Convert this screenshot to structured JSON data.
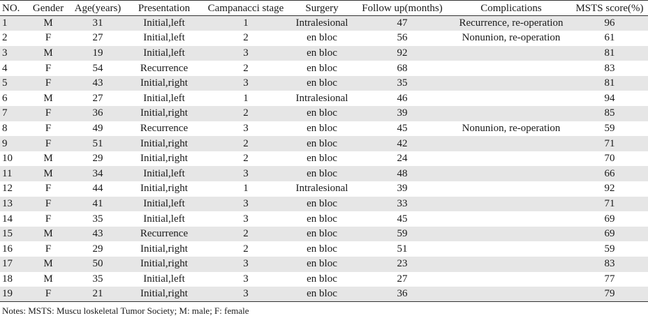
{
  "table": {
    "headers": [
      "NO.",
      "Gender",
      "Age(years)",
      "Presentation",
      "Campanacci stage",
      "Surgery",
      "Follow up(months)",
      "Complications",
      "MSTS score(%)"
    ],
    "rows": [
      [
        "1",
        "M",
        "31",
        "Initial,left",
        "1",
        "Intralesional",
        "47",
        "Recurrence, re-operation",
        "96"
      ],
      [
        "2",
        "F",
        "27",
        "Initial,left",
        "2",
        "en bloc",
        "56",
        "Nonunion, re-operation",
        "61"
      ],
      [
        "3",
        "M",
        "19",
        "Initial,left",
        "3",
        "en bloc",
        "92",
        "",
        "81"
      ],
      [
        "4",
        "F",
        "54",
        "Recurrence",
        "2",
        "en bloc",
        "68",
        "",
        "83"
      ],
      [
        "5",
        "F",
        "43",
        "Initial,right",
        "3",
        "en bloc",
        "35",
        "",
        "81"
      ],
      [
        "6",
        "M",
        "27",
        "Initial,left",
        "1",
        "Intralesional",
        "46",
        "",
        "94"
      ],
      [
        "7",
        "F",
        "36",
        "Initial,right",
        "2",
        "en bloc",
        "39",
        "",
        "85"
      ],
      [
        "8",
        "F",
        "49",
        "Recurrence",
        "3",
        "en bloc",
        "45",
        "Nonunion, re-operation",
        "59"
      ],
      [
        "9",
        "F",
        "51",
        "Initial,right",
        "2",
        "en bloc",
        "42",
        "",
        "71"
      ],
      [
        "10",
        "M",
        "29",
        "Initial,right",
        "2",
        "en bloc",
        "24",
        "",
        "70"
      ],
      [
        "11",
        "M",
        "34",
        "Initial,left",
        "3",
        "en bloc",
        "48",
        "",
        "66"
      ],
      [
        "12",
        "F",
        "44",
        "Initial,right",
        "1",
        "Intralesional",
        "39",
        "",
        "92"
      ],
      [
        "13",
        "F",
        "41",
        "Initial,left",
        "3",
        "en bloc",
        "33",
        "",
        "71"
      ],
      [
        "14",
        "F",
        "35",
        "Initial,left",
        "3",
        "en bloc",
        "45",
        "",
        "69"
      ],
      [
        "15",
        "M",
        "43",
        "Recurrence",
        "2",
        "en bloc",
        "59",
        "",
        "69"
      ],
      [
        "16",
        "F",
        "29",
        "Initial,right",
        "2",
        "en bloc",
        "51",
        "",
        "59"
      ],
      [
        "17",
        "M",
        "50",
        "Initial,right",
        "3",
        "en bloc",
        "23",
        "",
        "83"
      ],
      [
        "18",
        "M",
        "35",
        "Initial,left",
        "3",
        "en bloc",
        "27",
        "",
        "77"
      ],
      [
        "19",
        "F",
        "21",
        "Initial,right",
        "3",
        "en bloc",
        "36",
        "",
        "79"
      ]
    ]
  },
  "notes": "Notes: MSTS: Muscu loskeletal Tumor Society; M: male; F: female"
}
